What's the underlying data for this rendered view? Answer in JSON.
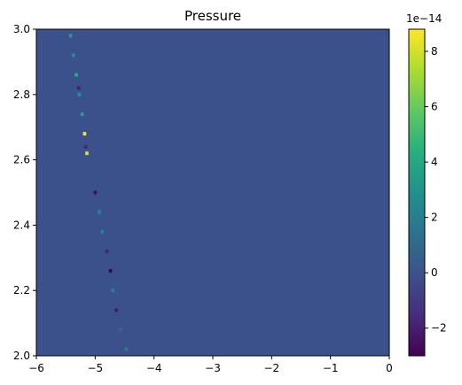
{
  "chart_data": {
    "type": "heatmap",
    "title": "Pressure",
    "xlabel": "",
    "ylabel": "",
    "xlim": [
      -6,
      0
    ],
    "ylim": [
      2.0,
      3.0
    ],
    "x_ticks": [
      -6,
      -5,
      -4,
      -3,
      -2,
      -1,
      0
    ],
    "x_tick_labels": [
      "−6",
      "−5",
      "−4",
      "−3",
      "−2",
      "−1",
      "0"
    ],
    "y_ticks": [
      2.0,
      2.2,
      2.4,
      2.6,
      2.8,
      3.0
    ],
    "y_tick_labels": [
      "2.0",
      "2.2",
      "2.4",
      "2.6",
      "2.8",
      "3.0"
    ],
    "background_value": 0.0,
    "background_color": "#3b518b",
    "colormap": "viridis",
    "colorbar": {
      "range": [
        -3.0,
        8.8
      ],
      "ticks": [
        -2,
        0,
        2,
        4,
        6,
        8
      ],
      "tick_labels": [
        "−2",
        "0",
        "2",
        "4",
        "6",
        "8"
      ],
      "scale_label": "1e−14"
    },
    "cells": [
      {
        "x": -5.42,
        "y": 2.98,
        "value": 3.5
      },
      {
        "x": -5.37,
        "y": 2.92,
        "value": 3.0
      },
      {
        "x": -5.32,
        "y": 2.86,
        "value": 4.2
      },
      {
        "x": -5.28,
        "y": 2.82,
        "value": -2.0
      },
      {
        "x": -5.27,
        "y": 2.8,
        "value": 3.0
      },
      {
        "x": -5.22,
        "y": 2.74,
        "value": 3.8
      },
      {
        "x": -5.18,
        "y": 2.68,
        "value": 8.8
      },
      {
        "x": -5.16,
        "y": 2.64,
        "value": -1.8
      },
      {
        "x": -5.14,
        "y": 2.62,
        "value": 8.3
      },
      {
        "x": -5.0,
        "y": 2.5,
        "value": -2.8
      },
      {
        "x": -4.93,
        "y": 2.44,
        "value": 2.6
      },
      {
        "x": -4.88,
        "y": 2.38,
        "value": 2.2
      },
      {
        "x": -4.8,
        "y": 2.32,
        "value": -1.8
      },
      {
        "x": -4.74,
        "y": 2.26,
        "value": -3.0
      },
      {
        "x": -4.7,
        "y": 2.2,
        "value": 2.2
      },
      {
        "x": -4.64,
        "y": 2.14,
        "value": -2.2
      },
      {
        "x": -4.57,
        "y": 2.08,
        "value": 1.2
      },
      {
        "x": -4.47,
        "y": 2.02,
        "value": 2.0
      }
    ]
  }
}
